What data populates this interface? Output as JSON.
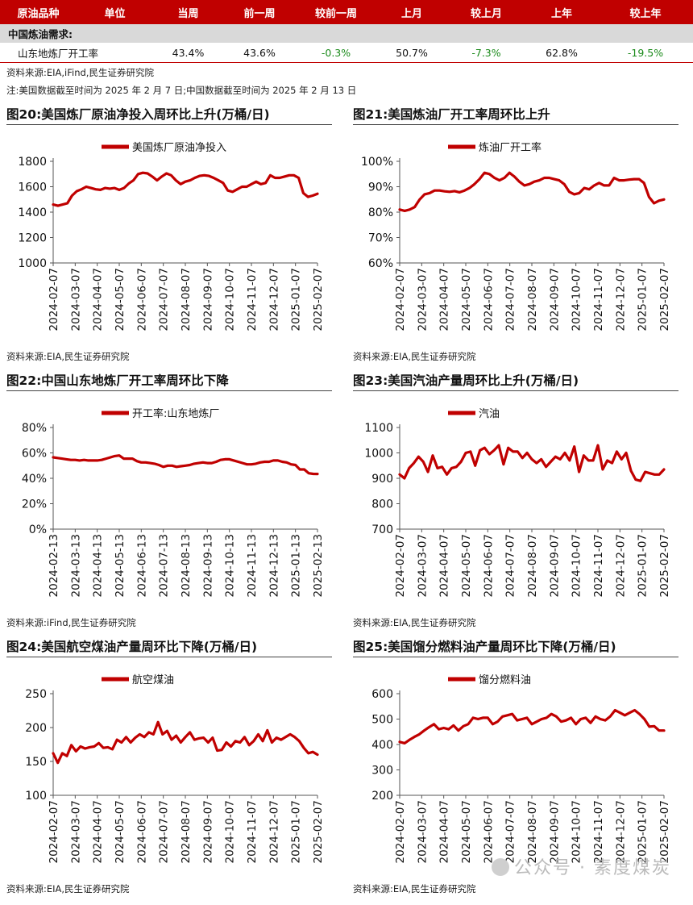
{
  "table": {
    "headers": [
      "原油品种",
      "单位",
      "当周",
      "前一周",
      "较前一周",
      "上月",
      "较上月",
      "上年",
      "较上年"
    ],
    "section": "中国炼油需求:",
    "row": {
      "name": "山东地炼厂开工率",
      "values": [
        "43.4%",
        "43.6%",
        "-0.3%",
        "50.7%",
        "-7.3%",
        "62.8%",
        "-19.5%"
      ]
    }
  },
  "notes": {
    "source": "资料来源:EIA,iFind,民生证券研究院",
    "note": "注:美国数据截至时间为 2025 年 2 月 7 日;中国数据截至时间为 2025 年 2 月 13 日"
  },
  "watermark": "公众号 · 素度煤炭",
  "colors": {
    "series": "#c00000",
    "negative": "#1a8a1a",
    "header": "#c00000"
  },
  "chart_data": [
    {
      "id": "fig20",
      "type": "line",
      "title": "图20:美国炼厂原油净投入周环比上升(万桶/日)",
      "legend": "美国炼厂原油净投入",
      "ylim": [
        1000,
        1800
      ],
      "yticks": [
        1000,
        1200,
        1400,
        1600,
        1800
      ],
      "yfmt": "num",
      "xticks": [
        "2024-02-07",
        "2024-03-07",
        "2024-04-07",
        "2024-05-07",
        "2024-06-07",
        "2024-07-07",
        "2024-08-07",
        "2024-09-07",
        "2024-10-07",
        "2024-11-07",
        "2024-12-07",
        "2025-01-07",
        "2025-02-07"
      ],
      "values": [
        1460,
        1450,
        1460,
        1470,
        1530,
        1565,
        1580,
        1600,
        1590,
        1580,
        1575,
        1590,
        1585,
        1590,
        1575,
        1590,
        1625,
        1650,
        1700,
        1710,
        1705,
        1680,
        1650,
        1680,
        1705,
        1690,
        1650,
        1620,
        1640,
        1650,
        1670,
        1685,
        1690,
        1685,
        1670,
        1650,
        1630,
        1570,
        1560,
        1580,
        1600,
        1600,
        1620,
        1640,
        1620,
        1630,
        1690,
        1670,
        1670,
        1680,
        1690,
        1690,
        1670,
        1550,
        1520,
        1530,
        1545
      ],
      "source": "资料来源:EIA,民生证券研究院"
    },
    {
      "id": "fig21",
      "type": "line",
      "title": "图21:美国炼油厂开工率周环比上升",
      "legend": "炼油厂开工率",
      "ylim": [
        60,
        100
      ],
      "yticks": [
        60,
        70,
        80,
        90,
        100
      ],
      "yfmt": "pct",
      "xticks": [
        "2024-02-07",
        "2024-03-07",
        "2024-04-07",
        "2024-05-07",
        "2024-06-07",
        "2024-07-07",
        "2024-08-07",
        "2024-09-07",
        "2024-10-07",
        "2024-11-07",
        "2024-12-07",
        "2025-01-07",
        "2025-02-07"
      ],
      "values": [
        81,
        80.5,
        81,
        82,
        85,
        87,
        87.5,
        88.5,
        88.5,
        88.2,
        88,
        88.3,
        87.8,
        88.5,
        89.5,
        91,
        93,
        95.5,
        95,
        93.5,
        92.5,
        93.5,
        95.5,
        94,
        92,
        90.5,
        91,
        92,
        92.5,
        93.5,
        93.5,
        93,
        92.5,
        91,
        88,
        87,
        87.5,
        89.5,
        89,
        90.5,
        91.5,
        90.5,
        90.5,
        93.5,
        92.5,
        92.5,
        92.8,
        93,
        93,
        91.5,
        86,
        83.5,
        84.5,
        85
      ],
      "source": "资料来源:EIA,民生证券研究院"
    },
    {
      "id": "fig22",
      "type": "line",
      "title": "图22:中国山东地炼厂开工率周环比下降",
      "legend": "开工率:山东地炼厂",
      "ylim": [
        0,
        80
      ],
      "yticks": [
        0,
        20,
        40,
        60,
        80
      ],
      "yfmt": "pct",
      "xticks": [
        "2024-02-13",
        "2024-03-13",
        "2024-04-13",
        "2024-05-13",
        "2024-06-13",
        "2024-07-13",
        "2024-08-13",
        "2024-09-13",
        "2024-10-13",
        "2024-11-13",
        "2024-12-13",
        "2025-01-13",
        "2025-02-13"
      ],
      "values": [
        56.5,
        56,
        55.5,
        55,
        54.5,
        54.5,
        54,
        54.5,
        54,
        54,
        54,
        54.5,
        55.5,
        56.5,
        57.5,
        58,
        55.5,
        55.5,
        55.5,
        53.5,
        52.5,
        52.5,
        52,
        51.5,
        50.5,
        49,
        50,
        50,
        49,
        49.5,
        50,
        50.5,
        51.5,
        52,
        52.5,
        52,
        52,
        53,
        54.5,
        55,
        55,
        54,
        53,
        52,
        51,
        51,
        51.5,
        52.5,
        53,
        53,
        54,
        54,
        53,
        52.5,
        51,
        50.5,
        47,
        47,
        44,
        43.5,
        43.4
      ],
      "source": "资料来源:iFind,民生证券研究院"
    },
    {
      "id": "fig23",
      "type": "line",
      "title": "图23:美国汽油产量周环比上升(万桶/日)",
      "legend": "汽油",
      "ylim": [
        700,
        1100
      ],
      "yticks": [
        700,
        800,
        900,
        1000,
        1100
      ],
      "yfmt": "num",
      "xticks": [
        "2024-02-07",
        "2024-03-07",
        "2024-04-07",
        "2024-05-07",
        "2024-06-07",
        "2024-07-07",
        "2024-08-07",
        "2024-09-07",
        "2024-10-07",
        "2024-11-07",
        "2024-12-07",
        "2025-01-07",
        "2025-02-07"
      ],
      "values": [
        915,
        900,
        940,
        960,
        985,
        965,
        925,
        990,
        940,
        945,
        915,
        940,
        945,
        965,
        1000,
        1005,
        950,
        1010,
        1020,
        995,
        1010,
        1030,
        955,
        1020,
        1005,
        1005,
        980,
        1000,
        975,
        960,
        975,
        945,
        965,
        985,
        975,
        1000,
        970,
        1025,
        925,
        990,
        970,
        970,
        1030,
        935,
        970,
        960,
        1005,
        975,
        1000,
        930,
        895,
        890,
        925,
        920,
        915,
        915,
        935
      ],
      "source": "资料来源:EIA,民生证券研究院"
    },
    {
      "id": "fig24",
      "type": "line",
      "title": "图24:美国航空煤油产量周环比下降(万桶/日)",
      "legend": "航空煤油",
      "ylim": [
        100,
        250
      ],
      "yticks": [
        100,
        150,
        200,
        250
      ],
      "yfmt": "num",
      "xticks": [
        "2024-02-07",
        "2024-03-07",
        "2024-04-07",
        "2024-05-07",
        "2024-06-07",
        "2024-07-07",
        "2024-08-07",
        "2024-09-07",
        "2024-10-07",
        "2024-11-07",
        "2024-12-07",
        "2025-01-07",
        "2025-02-07"
      ],
      "values": [
        162,
        148,
        162,
        158,
        174,
        165,
        172,
        169,
        171,
        172,
        177,
        170,
        171,
        168,
        182,
        178,
        186,
        178,
        185,
        190,
        186,
        193,
        190,
        208,
        190,
        195,
        182,
        188,
        178,
        186,
        193,
        182,
        184,
        185,
        178,
        185,
        166,
        167,
        178,
        172,
        180,
        178,
        186,
        174,
        180,
        190,
        180,
        196,
        178,
        185,
        182,
        186,
        190,
        186,
        180,
        170,
        162,
        164,
        160
      ],
      "source": "资料来源:EIA,民生证券研究院"
    },
    {
      "id": "fig25",
      "type": "line",
      "title": "图25:美国馏分燃料油产量周环比下降(万桶/日)",
      "legend": "馏分燃料油",
      "ylim": [
        200,
        600
      ],
      "yticks": [
        200,
        300,
        400,
        500,
        600
      ],
      "yfmt": "num",
      "xticks": [
        "2024-02-07",
        "2024-03-07",
        "2024-04-07",
        "2024-05-07",
        "2024-06-07",
        "2024-07-07",
        "2024-08-07",
        "2024-09-07",
        "2024-10-07",
        "2024-11-07",
        "2024-12-07",
        "2025-01-07",
        "2025-02-07"
      ],
      "values": [
        410,
        405,
        418,
        430,
        440,
        455,
        468,
        480,
        460,
        465,
        460,
        475,
        455,
        472,
        480,
        505,
        500,
        505,
        505,
        480,
        490,
        510,
        515,
        520,
        495,
        500,
        505,
        480,
        490,
        500,
        505,
        520,
        510,
        490,
        495,
        505,
        480,
        500,
        505,
        485,
        510,
        500,
        495,
        510,
        535,
        525,
        515,
        525,
        535,
        520,
        500,
        470,
        472,
        455,
        455
      ],
      "source": "资料来源:EIA,民生证券研究院"
    }
  ]
}
